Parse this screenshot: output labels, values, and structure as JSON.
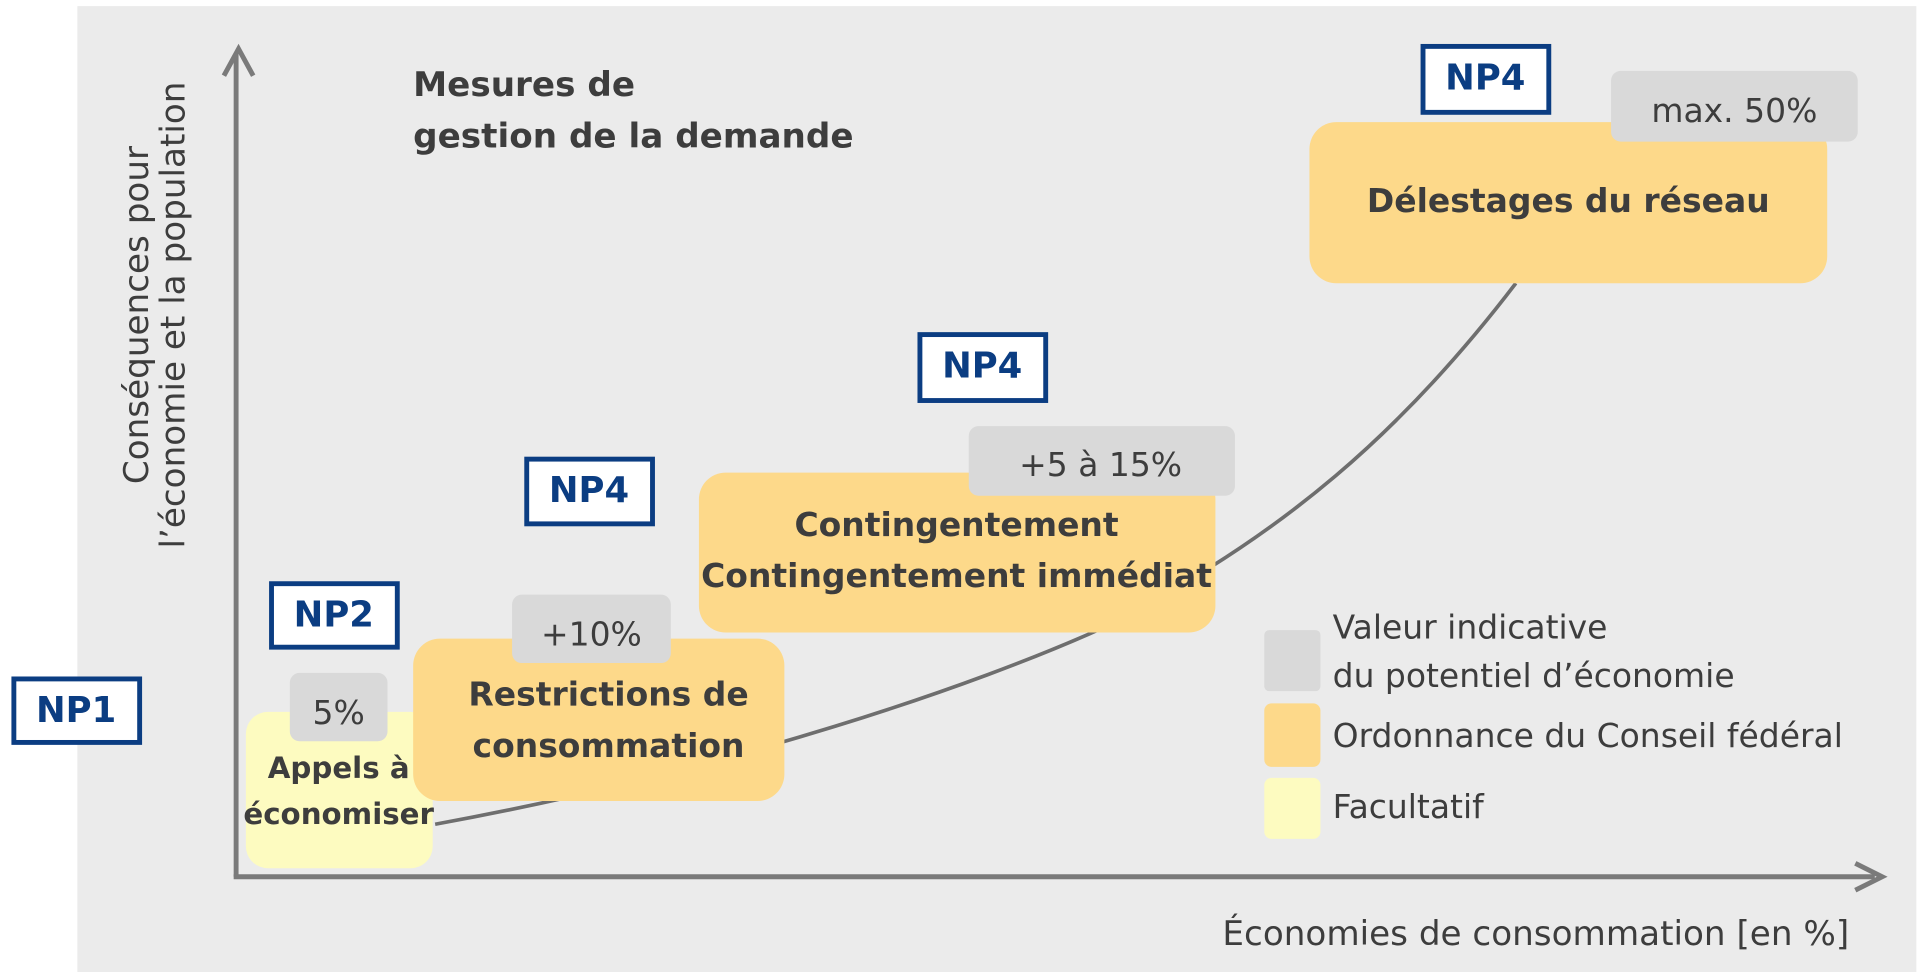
{
  "title": [
    "Mesures de",
    "gestion de la demande"
  ],
  "y_axis_label": [
    "Conséquences pour",
    "l’économie et la population"
  ],
  "x_axis_label": "Économies de consommation [en %]",
  "levels": [
    "NP1",
    "NP2",
    "NP4",
    "NP4",
    "NP4"
  ],
  "measures": [
    {
      "label": [
        "Appels à",
        "économiser"
      ],
      "potential": "5%"
    },
    {
      "label": [
        "Restrictions de",
        "consommation"
      ],
      "potential": "+10%"
    },
    {
      "label": [
        "Contingentement",
        "Contingentement immédiat"
      ],
      "potential": "+5 à 15%"
    },
    {
      "label": [
        "Délestages du réseau"
      ],
      "potential": "max. 50%"
    }
  ],
  "legend": [
    [
      "Valeur indicative",
      "du potentiel d’économie"
    ],
    [
      "Ordonnance du Conseil fédéral"
    ],
    [
      "Facultatif"
    ]
  ]
}
